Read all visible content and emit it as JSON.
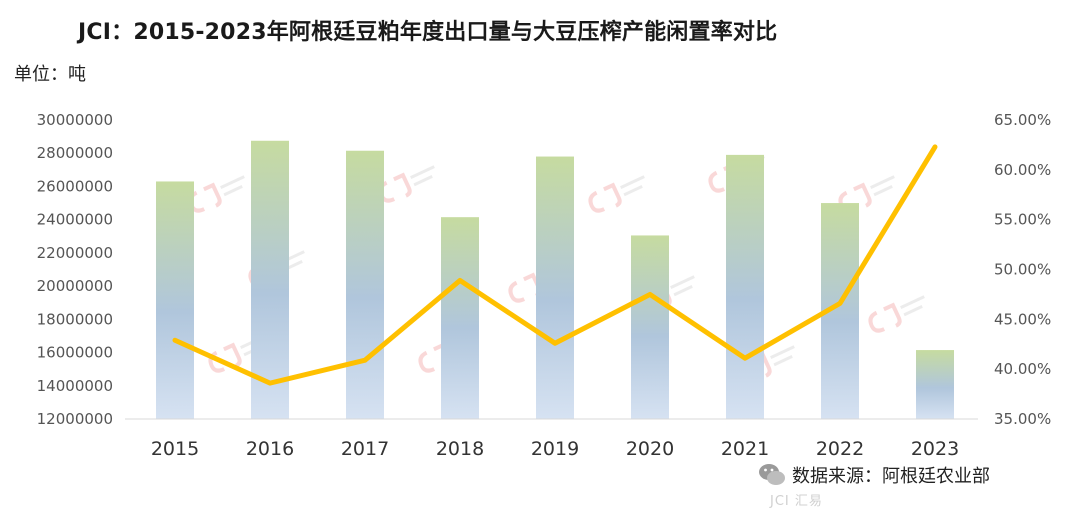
{
  "header": {
    "title": "JCI：2015-2023年阿根廷豆粕年度出口量与大豆压榨产能闲置率对比",
    "unit": "单位：吨"
  },
  "footer": {
    "source": "数据来源：阿根廷农业部",
    "brand": "JCI 汇易"
  },
  "colors": {
    "bar_top": "#c3d9a0",
    "bar_bottom": "#b3c8e6",
    "line": "#ffc000"
  },
  "chart_data": {
    "type": "bar",
    "categories": [
      "2015",
      "2016",
      "2017",
      "2018",
      "2019",
      "2020",
      "2021",
      "2022",
      "2023"
    ],
    "series": [
      {
        "type": "bar",
        "axis": "left",
        "values": [
          26300000,
          28750000,
          28150000,
          24150000,
          27800000,
          23050000,
          27900000,
          25000000,
          16150000
        ]
      },
      {
        "type": "line",
        "axis": "right",
        "values": [
          0.429,
          0.386,
          0.409,
          0.489,
          0.426,
          0.475,
          0.411,
          0.466,
          0.623
        ]
      }
    ],
    "ylim_left": [
      12000000,
      30000000
    ],
    "yticks_left": [
      "30000000",
      "28000000",
      "26000000",
      "24000000",
      "22000000",
      "20000000",
      "18000000",
      "16000000",
      "14000000",
      "12000000"
    ],
    "ylim_right": [
      0.35,
      0.65
    ],
    "yticks_right": [
      "65.00%",
      "60.00%",
      "55.00%",
      "50.00%",
      "45.00%",
      "40.00%",
      "35.00%"
    ],
    "grid": false,
    "legend": "none"
  }
}
